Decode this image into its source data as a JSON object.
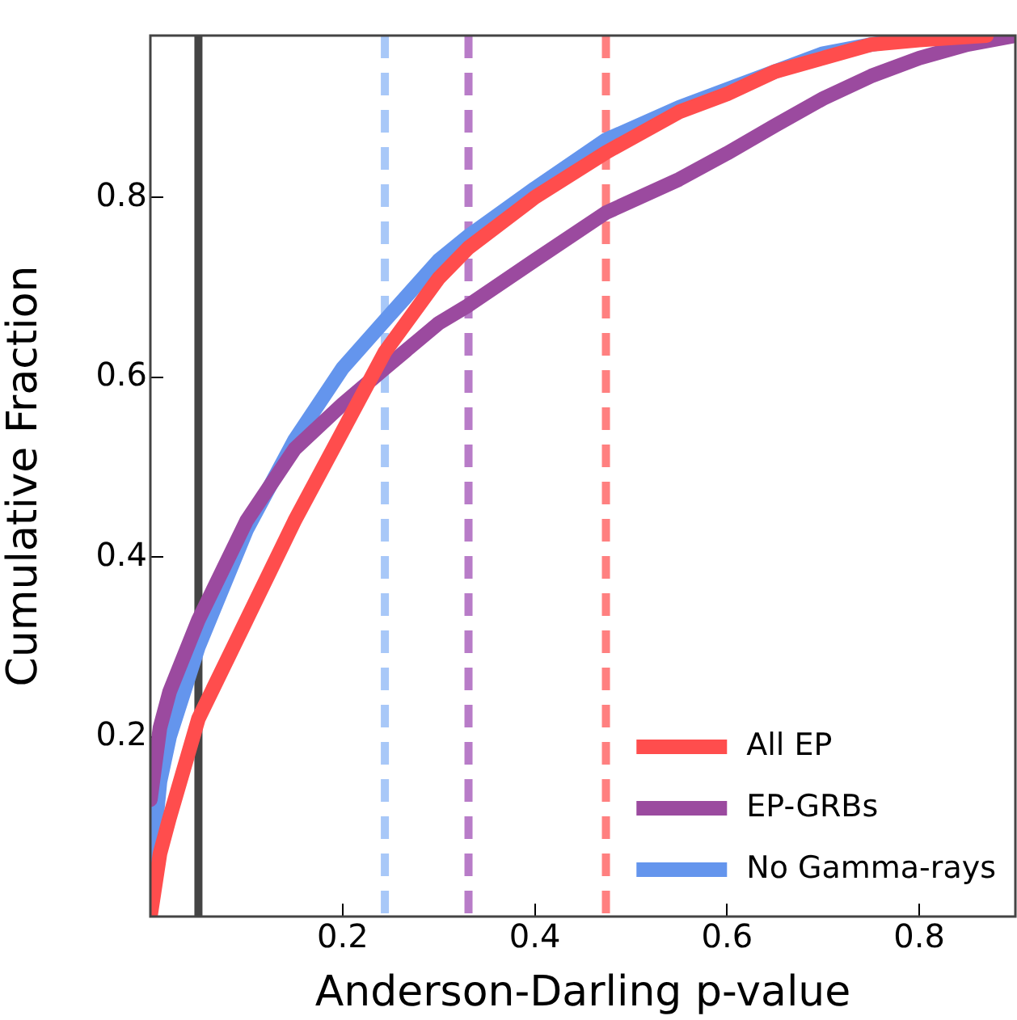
{
  "chart_data": {
    "type": "line",
    "xlabel": "Anderson-Darling p-value",
    "ylabel": "Cumulative Fraction",
    "xlim": [
      0,
      0.9
    ],
    "ylim": [
      0,
      0.98
    ],
    "xticks": [
      0.2,
      0.4,
      0.6,
      0.8
    ],
    "yticks": [
      0.2,
      0.4,
      0.6,
      0.8
    ],
    "legend": "bottom right",
    "marker": "none",
    "line_style": "solid",
    "series": [
      {
        "name": "All EP",
        "color": "#ff4d4d",
        "x": [
          0,
          0.01,
          0.02,
          0.05,
          0.1,
          0.15,
          0.2,
          0.244,
          0.3,
          0.331,
          0.4,
          0.474,
          0.55,
          0.6,
          0.65,
          0.7,
          0.75,
          0.8,
          0.87
        ],
        "values": [
          0,
          0.07,
          0.11,
          0.22,
          0.33,
          0.44,
          0.54,
          0.628,
          0.71,
          0.744,
          0.8,
          0.85,
          0.895,
          0.915,
          0.94,
          0.955,
          0.97,
          0.975,
          0.98
        ]
      },
      {
        "name": "EP-GRBs",
        "color": "#9b4a9f",
        "x": [
          0,
          0.01,
          0.02,
          0.05,
          0.1,
          0.15,
          0.2,
          0.244,
          0.3,
          0.331,
          0.4,
          0.474,
          0.55,
          0.6,
          0.65,
          0.7,
          0.75,
          0.8,
          0.85,
          0.9
        ],
        "values": [
          0.13,
          0.21,
          0.25,
          0.33,
          0.44,
          0.52,
          0.57,
          0.61,
          0.66,
          0.68,
          0.73,
          0.783,
          0.82,
          0.849,
          0.88,
          0.91,
          0.935,
          0.955,
          0.97,
          0.98
        ]
      },
      {
        "name": "No Gamma-rays",
        "color": "#6495ed",
        "x": [
          0,
          0.01,
          0.02,
          0.05,
          0.1,
          0.15,
          0.2,
          0.244,
          0.3,
          0.331,
          0.4,
          0.474,
          0.55,
          0.6,
          0.65,
          0.7,
          0.75,
          0.8,
          0.87
        ],
        "values": [
          0.04,
          0.15,
          0.2,
          0.3,
          0.43,
          0.53,
          0.61,
          0.663,
          0.73,
          0.757,
          0.81,
          0.864,
          0.9,
          0.92,
          0.94,
          0.96,
          0.97,
          0.978,
          0.98
        ]
      }
    ],
    "ref_lines": [
      {
        "axis": "x",
        "value": 0.05,
        "color": "#444444",
        "line_style": "solid"
      },
      {
        "axis": "x",
        "value": 0.244,
        "color": "#a8c8f8",
        "line_style": "dashed"
      },
      {
        "axis": "x",
        "value": 0.331,
        "color": "#b87cc8",
        "line_style": "dashed"
      },
      {
        "axis": "x",
        "value": 0.474,
        "color": "#ff8080",
        "line_style": "dashed"
      }
    ]
  }
}
